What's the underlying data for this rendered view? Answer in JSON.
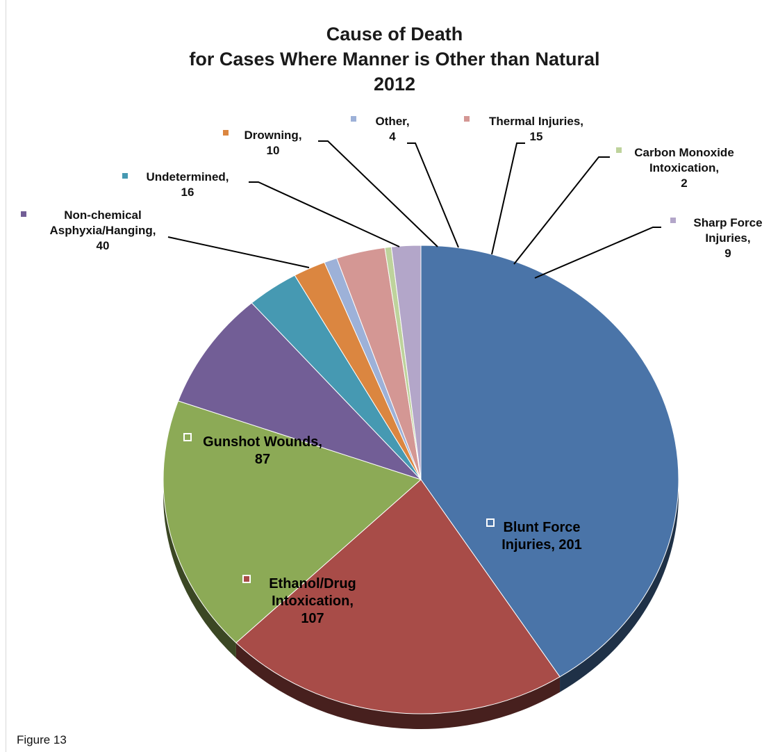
{
  "figure_label": "Figure 13",
  "chart_data": {
    "type": "pie",
    "title": [
      "Cause of Death",
      "for Cases Where Manner is Other than Natural",
      "2012"
    ],
    "legend": "none",
    "slices": [
      {
        "name": "Blunt Force Injuries",
        "value": 201,
        "color": "#4A74A8",
        "label_lines": [
          "Blunt Force",
          "Injuries, 201"
        ]
      },
      {
        "name": "Ethanol/Drug Intoxication",
        "value": 107,
        "color": "#A84C48",
        "label_lines": [
          "Ethanol/Drug",
          "Intoxication,",
          "107"
        ]
      },
      {
        "name": "Gunshot Wounds",
        "value": 87,
        "color": "#8CAA56",
        "label_lines": [
          "Gunshot Wounds,",
          "87"
        ]
      },
      {
        "name": "Non-chemical Asphyxia/Hanging",
        "value": 40,
        "color": "#725E96",
        "label_lines": [
          "Non-chemical",
          "Asphyxia/Hanging,",
          "40"
        ]
      },
      {
        "name": "Undetermined",
        "value": 16,
        "color": "#4699B2",
        "label_lines": [
          "Undetermined,",
          "16"
        ]
      },
      {
        "name": "Drowning",
        "value": 10,
        "color": "#DB8640",
        "label_lines": [
          "Drowning,",
          "10"
        ]
      },
      {
        "name": "Other",
        "value": 4,
        "color": "#9DB1D8",
        "label_lines": [
          "Other,",
          "4"
        ]
      },
      {
        "name": "Thermal Injuries",
        "value": 15,
        "color": "#D49794",
        "label_lines": [
          "Thermal Injuries,",
          "15"
        ]
      },
      {
        "name": "Carbon Monoxide Intoxication",
        "value": 2,
        "color": "#BED39C",
        "label_lines": [
          "Carbon Monoxide",
          "Intoxication,",
          "2"
        ]
      },
      {
        "name": "Sharp Force Injuries",
        "value": 9,
        "color": "#B3A6C9",
        "label_lines": [
          "Sharp Force",
          "Injuries,",
          "9"
        ]
      }
    ]
  }
}
